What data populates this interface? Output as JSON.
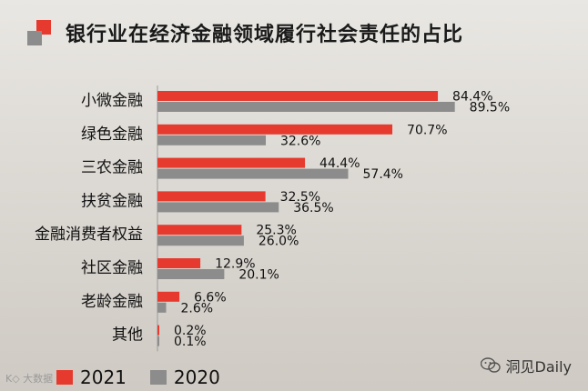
{
  "title": "银行业在经济金融领域履行社会责任的占比",
  "watermark": "洞见Daily",
  "corner_text": "K◇ 大数据",
  "colors": {
    "series_2021": "#e63a2e",
    "series_2020": "#8c8c8c"
  },
  "legend": [
    {
      "label": "2021",
      "color": "#e63a2e"
    },
    {
      "label": "2020",
      "color": "#8c8c8c"
    }
  ],
  "chart_data": {
    "type": "bar",
    "orientation": "horizontal",
    "categories": [
      "小微金融",
      "绿色金融",
      "三农金融",
      "扶贫金融",
      "金融消费者权益",
      "社区金融",
      "老龄金融",
      "其他"
    ],
    "series": [
      {
        "name": "2021",
        "values": [
          84.4,
          70.7,
          44.4,
          32.5,
          25.3,
          12.9,
          6.6,
          0.2
        ],
        "labels": [
          "84.4%",
          "70.7%",
          "44.4%",
          "32.5%",
          "25.3%",
          "12.9%",
          "6.6%",
          "0.2%"
        ]
      },
      {
        "name": "2020",
        "values": [
          89.5,
          32.6,
          57.4,
          36.5,
          26.0,
          20.1,
          2.6,
          0.1
        ],
        "labels": [
          "89.5%",
          "32.6%",
          "57.4%",
          "36.5%",
          "26.0%",
          "20.1%",
          "2.6%",
          "0.1%"
        ]
      }
    ],
    "xlim": [
      0,
      100
    ],
    "legend_position": "bottom-left",
    "grid": false
  }
}
